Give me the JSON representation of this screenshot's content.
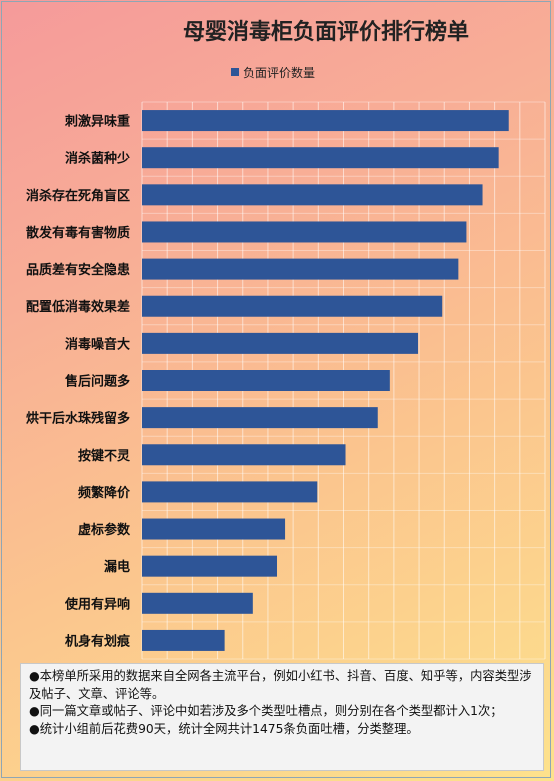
{
  "chart_data": {
    "type": "bar",
    "orientation": "horizontal",
    "title": "母婴消毒柜负面评价排行榜单",
    "legend": {
      "position": "top",
      "entries": [
        "负面评价数量"
      ]
    },
    "series": [
      {
        "name": "负面评价数量",
        "color": "#2e5597",
        "values": [
          182,
          177,
          169,
          161,
          157,
          149,
          137,
          123,
          117,
          101,
          87,
          71,
          67,
          55,
          41
        ]
      }
    ],
    "categories": [
      "刺激异味重",
      "消杀菌种少",
      "消杀存在死角盲区",
      "散发有毒有害物质",
      "品质差有安全隐患",
      "配置低消毒效果差",
      "消毒噪音大",
      "售后问题多",
      "烘干后水珠残留多",
      "按键不灵",
      "频繁降价",
      "虚标参数",
      "漏电",
      "使用有异响",
      "机身有划痕"
    ],
    "xlim": [
      0,
      200
    ],
    "grid": true,
    "gridlines": 16,
    "tick_labels_shown": false
  },
  "notes": [
    "●本榜单所采用的数据来自全网各主流平台，例如小红书、抖音、百度、知乎等，内容类型涉及帖子、文章、评论等。",
    "●同一篇文章或帖子、评论中如若涉及多个类型吐槽点，则分别在各个类型都计入1次；",
    "●统计小组前后花费90天，统计全网共计1475条负面吐槽，分类整理。"
  ]
}
